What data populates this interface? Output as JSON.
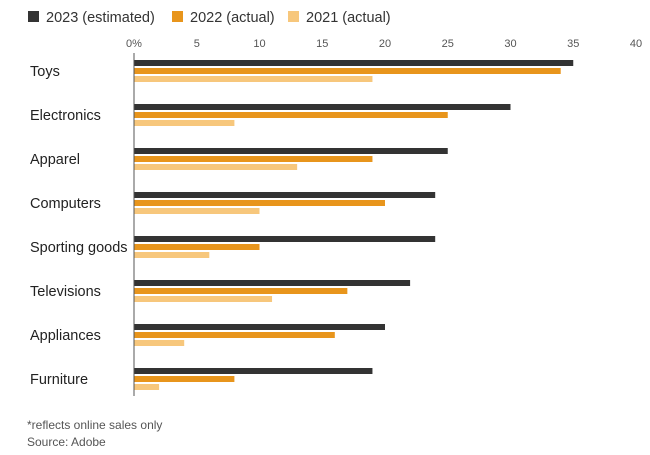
{
  "chart_data": {
    "type": "bar",
    "orientation": "horizontal",
    "categories": [
      "Toys",
      "Electronics",
      "Apparel",
      "Computers",
      "Sporting goods",
      "Televisions",
      "Appliances",
      "Furniture"
    ],
    "series": [
      {
        "name": "2023 (estimated)",
        "color": "#333333",
        "values": [
          35,
          30,
          25,
          24,
          24,
          22,
          20,
          19
        ]
      },
      {
        "name": "2022 (actual)",
        "color": "#e8951c",
        "values": [
          34,
          25,
          19,
          20,
          10,
          17,
          16,
          8
        ]
      },
      {
        "name": "2021 (actual)",
        "color": "#f7c77c",
        "values": [
          19,
          8,
          13,
          10,
          6,
          11,
          4,
          2
        ]
      }
    ],
    "xlim": [
      0,
      40
    ],
    "ticks": [
      "0%",
      "5",
      "10",
      "15",
      "20",
      "25",
      "30",
      "35",
      "40"
    ],
    "tick_values": [
      0,
      5,
      10,
      15,
      20,
      25,
      30,
      35,
      40
    ],
    "legend_position": "top-left",
    "grid": false
  },
  "footnote": "*reflects online sales only",
  "source": "Source: Adobe"
}
